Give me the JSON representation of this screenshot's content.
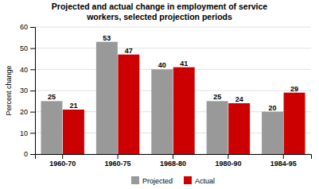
{
  "chart_data": {
    "type": "bar",
    "title": "Projected and actual change in employment of service\nworkers, selected projection periods",
    "categories": [
      "1960-70",
      "1960-75",
      "1968-80",
      "1980-90",
      "1984-95"
    ],
    "series": [
      {
        "name": "Projected",
        "color": "#999999",
        "values": [
          25,
          53,
          40,
          25,
          20
        ]
      },
      {
        "name": "Actual",
        "color": "#cc0000",
        "values": [
          21,
          47,
          41,
          24,
          29
        ]
      }
    ],
    "ylabel": "Percent change",
    "ylim": [
      0,
      60
    ],
    "yticks": [
      0,
      10,
      20,
      30,
      40,
      50,
      60
    ],
    "grid": true,
    "legend": "bottom",
    "data_labels": true
  }
}
